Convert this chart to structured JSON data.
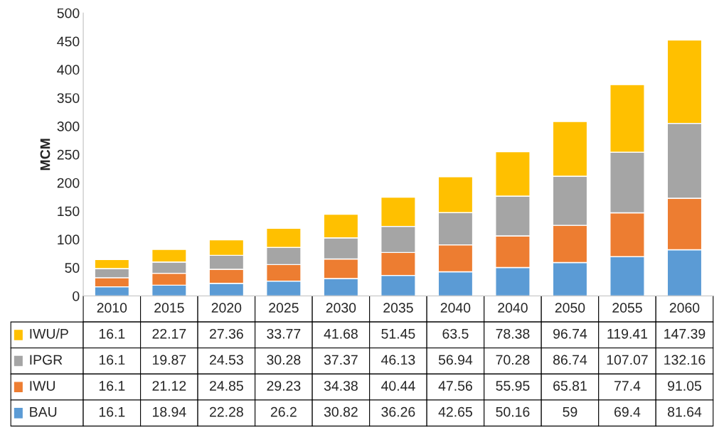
{
  "chart_data": {
    "type": "bar",
    "stacked": true,
    "ylabel": "MCM",
    "categories": [
      "2010",
      "2015",
      "2020",
      "2025",
      "2030",
      "2035",
      "2040",
      "2040",
      "2050",
      "2055",
      "2060"
    ],
    "series": [
      {
        "name": "BAU",
        "color": "#5b9bd5",
        "values": [
          16.1,
          18.94,
          22.28,
          26.2,
          30.82,
          36.26,
          42.65,
          50.16,
          59,
          69.4,
          81.64
        ]
      },
      {
        "name": "IWU",
        "color": "#ed7d31",
        "values": [
          16.1,
          21.12,
          24.85,
          29.23,
          34.38,
          40.44,
          47.56,
          55.95,
          65.81,
          77.4,
          91.05
        ]
      },
      {
        "name": "IPGR",
        "color": "#a5a5a5",
        "values": [
          16.1,
          19.87,
          24.53,
          30.28,
          37.37,
          46.13,
          56.94,
          70.28,
          86.74,
          107.07,
          132.16
        ]
      },
      {
        "name": "IWU/P",
        "color": "#ffc000",
        "values": [
          16.1,
          22.17,
          27.36,
          33.77,
          41.68,
          51.45,
          63.5,
          78.38,
          96.74,
          119.41,
          147.39
        ]
      }
    ],
    "ylim": [
      0,
      500
    ],
    "yticks": [
      0,
      50,
      100,
      150,
      200,
      250,
      300,
      350,
      400,
      450,
      500
    ],
    "grid": false,
    "legend": "bottom",
    "data_labels": true
  }
}
